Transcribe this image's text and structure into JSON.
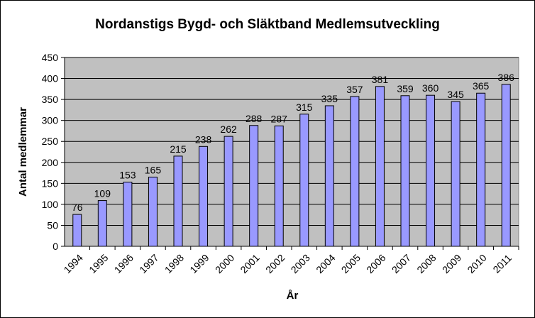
{
  "chart_data": {
    "type": "bar",
    "title": "Nordanstigs Bygd- och Släktband Medlemsutveckling",
    "xlabel": "År",
    "ylabel": "Antal medlemmar",
    "categories": [
      "1994",
      "1995",
      "1996",
      "1997",
      "1998",
      "1999",
      "2000",
      "2001",
      "2002",
      "2003",
      "2004",
      "2005",
      "2006",
      "2007",
      "2008",
      "2009",
      "2010",
      "2011"
    ],
    "values": [
      76,
      109,
      153,
      165,
      215,
      238,
      262,
      288,
      287,
      315,
      335,
      357,
      381,
      359,
      360,
      345,
      365,
      386
    ],
    "ylim": [
      0,
      450
    ],
    "yticks": [
      0,
      50,
      100,
      150,
      200,
      250,
      300,
      350,
      400,
      450
    ],
    "grid": true,
    "legend": "none",
    "data_labels": true,
    "colors": {
      "bar_fill": "#9999ff",
      "bar_stroke": "#000000",
      "plot_background": "#c0c0c0",
      "gridline": "#000000"
    }
  }
}
